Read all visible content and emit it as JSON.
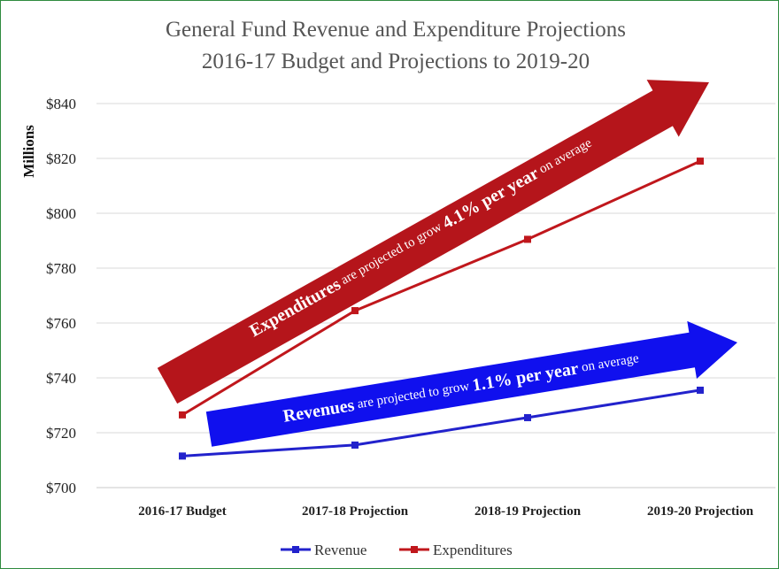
{
  "chart_data": {
    "type": "line",
    "title": "General Fund Revenue and Expenditure Projections",
    "subtitle": "2016-17 Budget and Projections to 2019-20",
    "xlabel": "",
    "ylabel": "Millions",
    "categories": [
      "2016-17 Budget",
      "2017-18 Projection",
      "2018-19 Projection",
      "2019-20 Projection"
    ],
    "ylim": [
      700,
      850
    ],
    "yticks": [
      700,
      720,
      740,
      760,
      780,
      800,
      820,
      840
    ],
    "ytick_labels": [
      "$700",
      "$720",
      "$740",
      "$760",
      "$780",
      "$800",
      "$820",
      "$840"
    ],
    "grid": "horizontal",
    "legend_position": "bottom",
    "series": [
      {
        "name": "Revenue",
        "color": "#2222cc",
        "values": [
          711.5,
          715.5,
          725.5,
          735.5
        ]
      },
      {
        "name": "Expenditures",
        "color": "#c0171c",
        "values": [
          726.5,
          764.5,
          790.5,
          819
        ]
      }
    ],
    "annotations": [
      {
        "target": "Expenditures",
        "color": "#b5151b",
        "parts": [
          {
            "text": "Expenditures",
            "bold": true
          },
          {
            "text": " are projected to grow ",
            "bold": false
          },
          {
            "text": "4.1% per year",
            "bold": true
          },
          {
            "text": " on average",
            "bold": false
          }
        ]
      },
      {
        "target": "Revenue",
        "color": "#1010ee",
        "parts": [
          {
            "text": "Revenues",
            "bold": true
          },
          {
            "text": " are projected to grow ",
            "bold": false
          },
          {
            "text": "1.1% per year",
            "bold": true
          },
          {
            "text": " on average",
            "bold": false
          }
        ]
      }
    ]
  }
}
